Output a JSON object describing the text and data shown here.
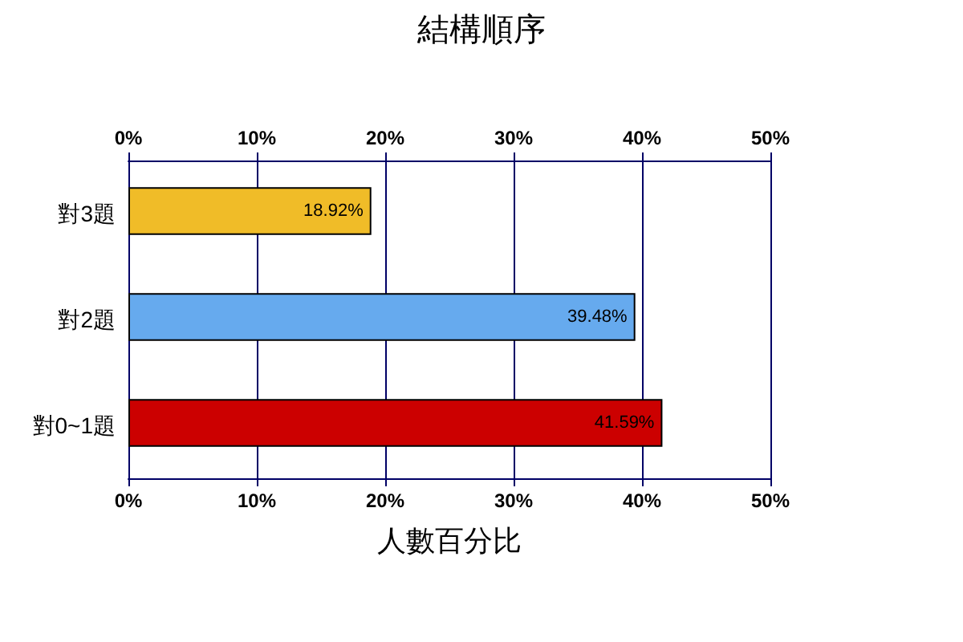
{
  "chart_data": {
    "type": "bar",
    "orientation": "horizontal",
    "title": "結構順序",
    "xlabel": "人數百分比",
    "categories": [
      "對3題",
      "對2題",
      "對0~1題"
    ],
    "values": [
      18.92,
      39.48,
      41.59
    ],
    "colors": [
      "#f0bc28",
      "#66aaee",
      "#cc0000"
    ],
    "value_labels": [
      "18.92%",
      "39.48%",
      "41.59%"
    ],
    "xlim": [
      0,
      50
    ],
    "xticks": [
      {
        "value": 0,
        "label": "0%"
      },
      {
        "value": 10,
        "label": "10%"
      },
      {
        "value": 20,
        "label": "20%"
      },
      {
        "value": 30,
        "label": "30%"
      },
      {
        "value": 40,
        "label": "40%"
      },
      {
        "value": 50,
        "label": "50%"
      }
    ],
    "x2lim": [
      0,
      50
    ],
    "x2ticks": [
      {
        "value": 0,
        "label": "0%"
      },
      {
        "value": 10,
        "label": "10%"
      },
      {
        "value": 20,
        "label": "20%"
      },
      {
        "value": 30,
        "label": "30%"
      },
      {
        "value": 40,
        "label": "40%"
      },
      {
        "value": 50,
        "label": "50%"
      }
    ],
    "grid": "x"
  }
}
